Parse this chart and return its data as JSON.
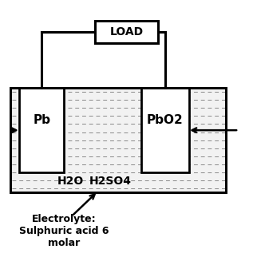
{
  "bg_color": "#ffffff",
  "line_color": "#000000",
  "title_text": "LOAD",
  "pb_label": "Pb",
  "pbo2_label": "PbO2",
  "h2o_label": "H2O",
  "h2so4_label": "H2SO4",
  "electrolyte_label": "Electrolyte:\nSulphuric acid 6\nmolar",
  "figsize": [
    3.17,
    3.17
  ],
  "dpi": 100,
  "dash_color": "#888888",
  "electrolyte_bg": "#f2f2f2"
}
